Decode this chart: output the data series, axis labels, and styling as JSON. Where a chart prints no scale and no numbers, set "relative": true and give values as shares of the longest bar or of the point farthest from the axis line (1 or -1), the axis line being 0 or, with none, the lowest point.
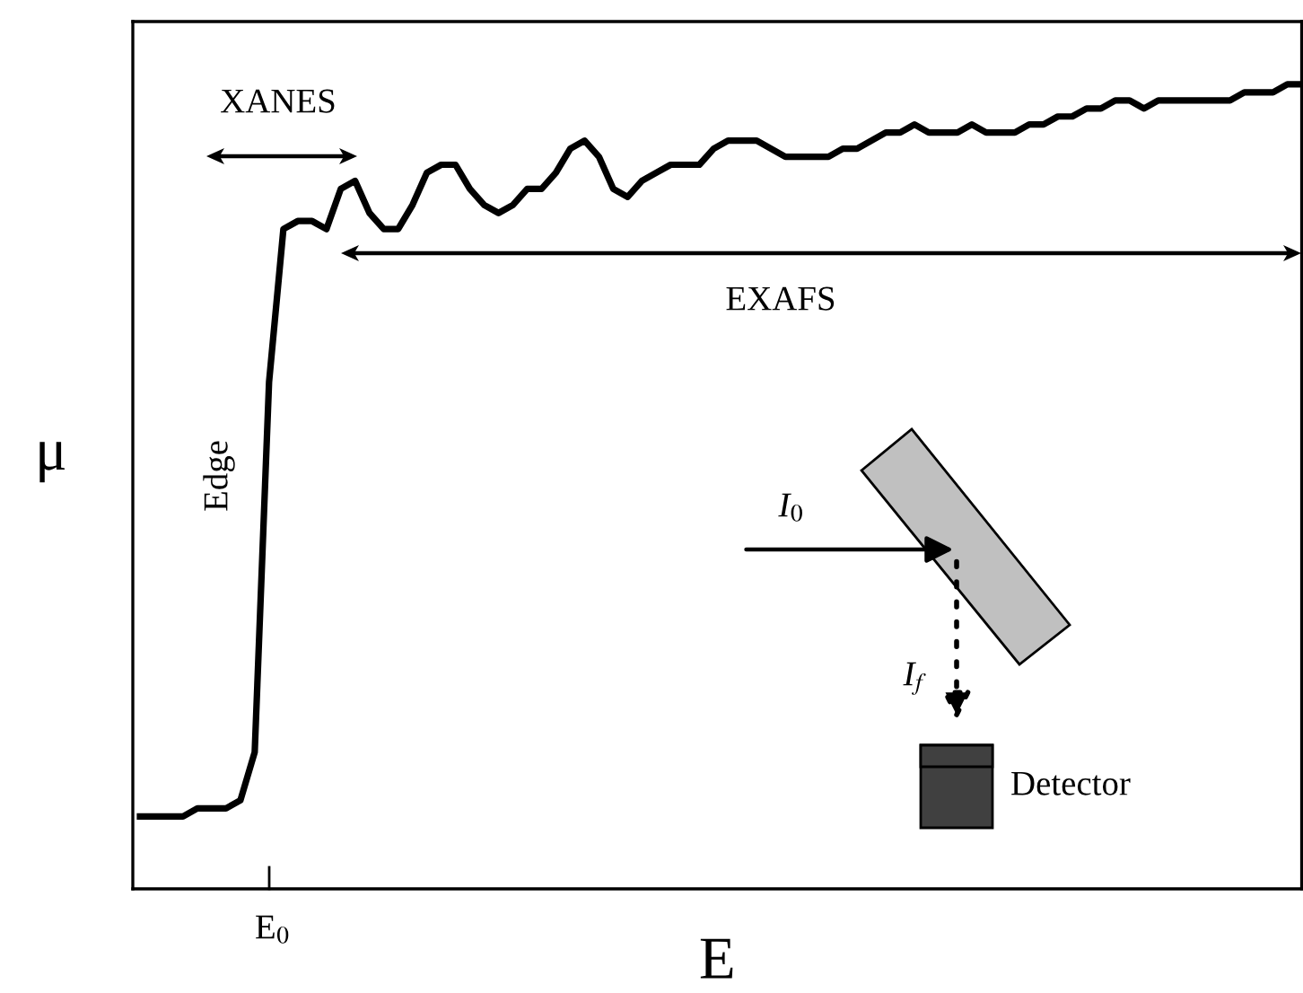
{
  "chart_data": {
    "type": "line",
    "relative": true,
    "xlabel": "E",
    "ylabel": "μ",
    "categories": [
      null,
      null,
      null,
      null,
      null,
      null,
      null,
      null,
      null,
      null,
      null,
      null,
      null,
      null,
      null,
      null,
      null,
      null,
      null,
      null,
      null,
      null,
      null,
      null,
      null,
      null,
      null,
      null,
      null,
      null,
      null,
      null,
      null,
      null,
      null,
      null,
      null,
      null,
      null,
      null,
      null,
      null,
      null,
      null,
      null,
      null,
      null,
      null,
      null,
      null,
      null,
      null,
      null,
      null,
      null,
      null,
      null,
      null,
      null,
      null,
      null,
      null,
      null,
      null,
      null,
      null,
      null,
      null,
      null,
      null,
      null,
      null,
      null,
      null,
      null,
      null,
      null,
      null,
      null,
      null,
      null,
      null
    ],
    "series": [
      {
        "color": "#000000",
        "values": [
          0.09,
          0.09,
          0.09,
          0.09,
          0.1,
          0.1,
          0.1,
          0.11,
          0.17,
          0.63,
          0.82,
          0.83,
          0.83,
          0.82,
          0.87,
          0.88,
          0.84,
          0.82,
          0.82,
          0.85,
          0.89,
          0.9,
          0.9,
          0.87,
          0.85,
          0.84,
          0.85,
          0.87,
          0.87,
          0.89,
          0.92,
          0.93,
          0.91,
          0.87,
          0.86,
          0.88,
          0.89,
          0.9,
          0.9,
          0.9,
          0.92,
          0.93,
          0.93,
          0.93,
          0.92,
          0.91,
          0.91,
          0.91,
          0.91,
          0.92,
          0.92,
          0.93,
          0.94,
          0.94,
          0.95,
          0.94,
          0.94,
          0.94,
          0.95,
          0.94,
          0.94,
          0.94,
          0.95,
          0.95,
          0.96,
          0.96,
          0.97,
          0.97,
          0.98,
          0.98,
          0.97,
          0.98,
          0.98,
          0.98,
          0.98,
          0.98,
          0.98,
          0.99,
          0.99,
          0.99,
          1.0,
          1.0
        ]
      }
    ],
    "annotations": [
      "XANES",
      "EXAFS",
      "Edge",
      "I$_{0}$",
      "I$_{f}$",
      "Detector",
      "E$_{0}$"
    ],
    "marker": "none",
    "line_style": "solid",
    "legend": false
  }
}
